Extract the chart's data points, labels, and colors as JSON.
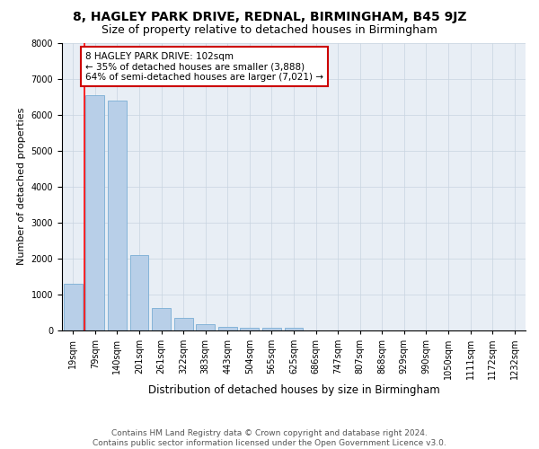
{
  "title": "8, HAGLEY PARK DRIVE, REDNAL, BIRMINGHAM, B45 9JZ",
  "subtitle": "Size of property relative to detached houses in Birmingham",
  "xlabel": "Distribution of detached houses by size in Birmingham",
  "ylabel": "Number of detached properties",
  "footer_line1": "Contains HM Land Registry data © Crown copyright and database right 2024.",
  "footer_line2": "Contains public sector information licensed under the Open Government Licence v3.0.",
  "bin_labels": [
    "19sqm",
    "79sqm",
    "140sqm",
    "201sqm",
    "261sqm",
    "322sqm",
    "383sqm",
    "443sqm",
    "504sqm",
    "565sqm",
    "625sqm",
    "686sqm",
    "747sqm",
    "807sqm",
    "868sqm",
    "929sqm",
    "990sqm",
    "1050sqm",
    "1111sqm",
    "1172sqm",
    "1232sqm"
  ],
  "bar_values": [
    1300,
    6550,
    6400,
    2100,
    620,
    350,
    160,
    90,
    70,
    60,
    60,
    0,
    0,
    0,
    0,
    0,
    0,
    0,
    0,
    0,
    0
  ],
  "bar_color": "#b8cfe8",
  "bar_edge_color": "#7aadd4",
  "red_line_x": 0.5,
  "annotation_text": "8 HAGLEY PARK DRIVE: 102sqm\n← 35% of detached houses are smaller (3,888)\n64% of semi-detached houses are larger (7,021) →",
  "annotation_box_color": "#ffffff",
  "annotation_box_edge_color": "#cc0000",
  "ylim": [
    0,
    8000
  ],
  "yticks": [
    0,
    1000,
    2000,
    3000,
    4000,
    5000,
    6000,
    7000,
    8000
  ],
  "grid_color": "#c8d4e0",
  "bg_color": "#e8eef5",
  "title_fontsize": 10,
  "subtitle_fontsize": 9,
  "xlabel_fontsize": 8.5,
  "ylabel_fontsize": 8,
  "tick_fontsize": 7,
  "annotation_fontsize": 7.5,
  "footer_fontsize": 6.5
}
